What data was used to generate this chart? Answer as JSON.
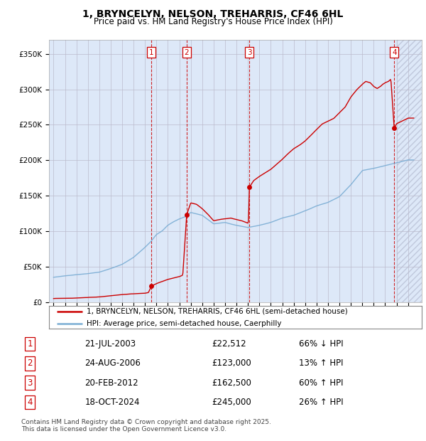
{
  "title": "1, BRYNCELYN, NELSON, TREHARRIS, CF46 6HL",
  "subtitle": "Price paid vs. HM Land Registry's House Price Index (HPI)",
  "sale_year_nums": [
    2003.554,
    2006.644,
    2012.133,
    2024.794
  ],
  "sale_prices": [
    22512,
    123000,
    162500,
    245000
  ],
  "sale_labels": [
    "1",
    "2",
    "3",
    "4"
  ],
  "legend_line1": "1, BRYNCELYN, NELSON, TREHARRIS, CF46 6HL (semi-detached house)",
  "legend_line2": "HPI: Average price, semi-detached house, Caerphilly",
  "table_rows": [
    [
      "1",
      "21-JUL-2003",
      "£22,512",
      "66% ↓ HPI"
    ],
    [
      "2",
      "24-AUG-2006",
      "£123,000",
      "13% ↑ HPI"
    ],
    [
      "3",
      "20-FEB-2012",
      "£162,500",
      "60% ↑ HPI"
    ],
    [
      "4",
      "18-OCT-2024",
      "£245,000",
      "26% ↑ HPI"
    ]
  ],
  "footer": "Contains HM Land Registry data © Crown copyright and database right 2025.\nThis data is licensed under the Open Government Licence v3.0.",
  "price_color": "#cc0000",
  "hpi_color": "#7aadd4",
  "ylim": [
    0,
    370000
  ],
  "yticks": [
    0,
    50000,
    100000,
    150000,
    200000,
    250000,
    300000,
    350000
  ],
  "ytick_labels": [
    "£0",
    "£50K",
    "£100K",
    "£150K",
    "£200K",
    "£250K",
    "£300K",
    "£350K"
  ],
  "xlim_start": 1994.6,
  "xlim_end": 2027.2,
  "background_color": "#ffffff",
  "plot_bg_color": "#dde8f8",
  "grid_color": "#bbbbcc",
  "hatch_start": 2025.0
}
